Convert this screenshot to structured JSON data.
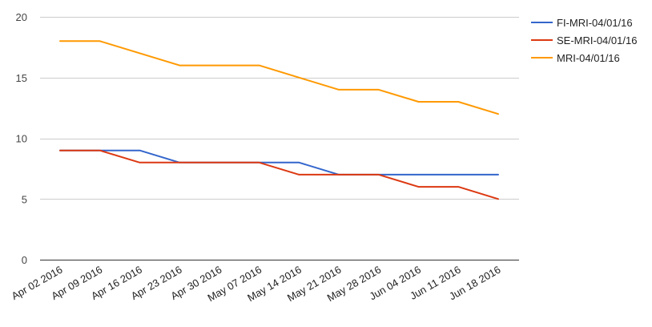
{
  "chart_data": {
    "type": "line",
    "title": "",
    "xlabel": "",
    "ylabel": "",
    "ylim": [
      0,
      20
    ],
    "yticks": [
      0,
      5,
      10,
      15,
      20
    ],
    "grid": true,
    "legend": "right",
    "categories": [
      "Apr 02 2016",
      "Apr 09 2016",
      "Apr 16 2016",
      "Apr 23 2016",
      "Apr 30 2016",
      "May 07 2016",
      "May 14 2016",
      "May 21 2016",
      "May 28 2016",
      "Jun 04 2016",
      "Jun 11 2016",
      "Jun 18 2016"
    ],
    "series": [
      {
        "name": "FI-MRI-04/01/16",
        "color": "#3366cc",
        "values": [
          9,
          9,
          9,
          8,
          8,
          8,
          8,
          7,
          7,
          7,
          7,
          7
        ]
      },
      {
        "name": "SE-MRI-04/01/16",
        "color": "#dc3912",
        "values": [
          9,
          9,
          8,
          8,
          8,
          8,
          7,
          7,
          7,
          6,
          6,
          5
        ]
      },
      {
        "name": "MRI-04/01/16",
        "color": "#ff9900",
        "values": [
          18,
          18,
          17,
          16,
          16,
          16,
          15,
          14,
          14,
          13,
          13,
          12
        ]
      }
    ]
  }
}
